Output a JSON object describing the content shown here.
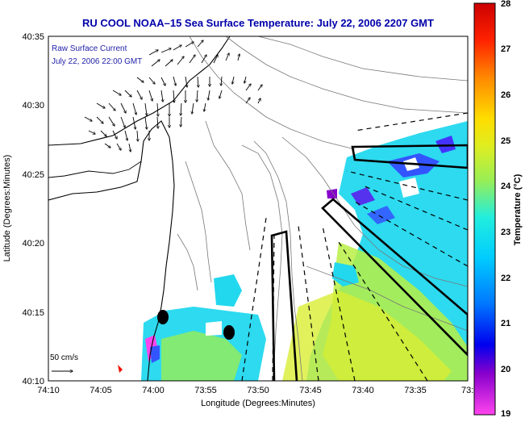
{
  "title": "RU COOL  NOAA–15  Sea Surface Temperature:  July 22, 2006 2207 GMT",
  "current_label_line1": "Raw Surface Current",
  "current_label_line2": "July 22, 2006 22:00 GMT",
  "scale_label": "50 cm/s",
  "xlabel": "Longitude (Degrees:Minutes)",
  "ylabel": "Latitude (Degrees:Minutes)",
  "x_ticks": [
    "74:10",
    "74:05",
    "74:00",
    "73:55",
    "73:50",
    "73:45",
    "73:40",
    "73:35",
    "73:3"
  ],
  "y_ticks": [
    "40:35",
    "40:30",
    "40:25",
    "40:20",
    "40:15",
    "40:10"
  ],
  "colorbar": {
    "label": "Temperature (°C)",
    "ticks": [
      "28",
      "27",
      "26",
      "25",
      "24",
      "23",
      "22",
      "21",
      "20",
      "19"
    ],
    "min": 19,
    "max": 28
  },
  "colors": {
    "title": "#0000aa",
    "label_blue": "#2222aa",
    "sst_mid": "#22d8ee",
    "sst_warm": "#b8ee44",
    "sst_cool": "#3355ff"
  },
  "map_extent": {
    "lon_west": "74:10",
    "lon_east": "73:3",
    "lat_south": "40:10",
    "lat_north": "40:35"
  }
}
